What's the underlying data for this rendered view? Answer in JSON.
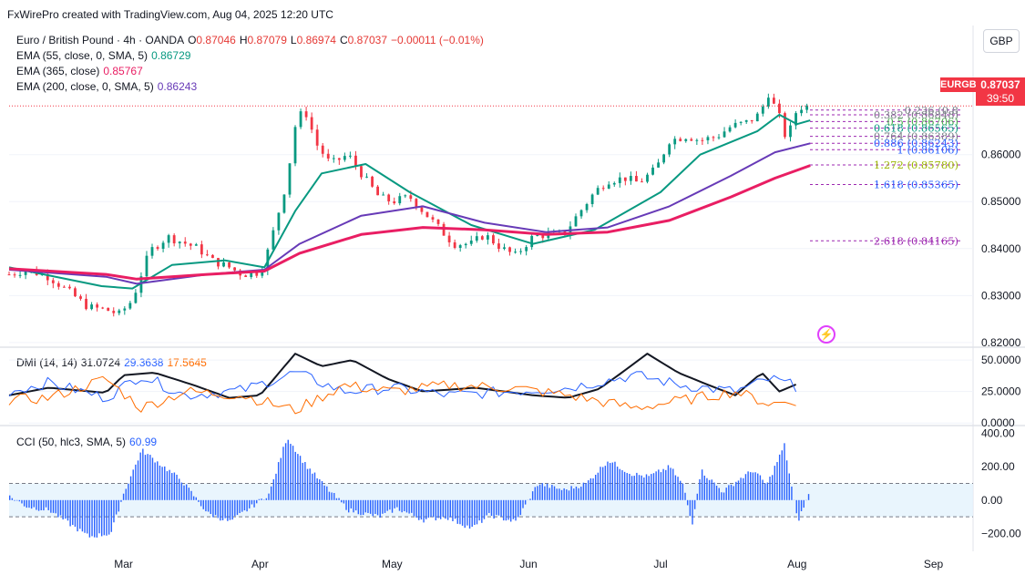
{
  "header": "FxWirePro created with TradingView.com, Aug 04, 2025 12:20 UTC",
  "currency_button": "GBP",
  "main_legend": {
    "symbol": "Euro / British Pound · 4h · OANDA",
    "o_label": "O",
    "o": "0.87046",
    "h_label": "H",
    "h": "0.87079",
    "l_label": "L",
    "l": "0.86974",
    "c_label": "C",
    "c": "0.87037",
    "change": "−0.00011 (−0.01%)",
    "ema55_label": "EMA (55, close, 0, SMA, 5)",
    "ema55": "0.86729",
    "ema365_label": "EMA (365, close)",
    "ema365": "0.85767",
    "ema200_label": "EMA (200, close, 0, SMA, 5)",
    "ema200": "0.86243"
  },
  "dmi_legend": {
    "label": "DMI (14, 14)",
    "adx": "31.0724",
    "plus_di": "29.3638",
    "minus_di": "17.5645"
  },
  "cci_legend": {
    "label": "CCI (50, hlc3, SMA, 5)",
    "value": "60.99"
  },
  "price_tag": {
    "symbol": "EURGBP",
    "price": "0.87037",
    "countdown": "39:50"
  },
  "colors": {
    "up": "#089981",
    "down": "#f23645",
    "ema55": "#089981",
    "ema200": "#673ab7",
    "ema365": "#e91e63",
    "adx": "#131722",
    "plus_di": "#2962ff",
    "minus_di": "#ff6d00",
    "cci": "#2962ff",
    "fib": "#9c27b0"
  },
  "chart_data": [
    {
      "type": "candlestick",
      "title": "Euro / British Pound · 4h · OANDA",
      "x_ticks": [
        "Mar",
        "Apr",
        "May",
        "Jun",
        "Jul",
        "Aug",
        "Sep"
      ],
      "y_ticks": [
        "0.82000",
        "0.83000",
        "0.84000",
        "0.85000",
        "0.86000"
      ],
      "ylim": [
        0.819,
        0.8875
      ],
      "close_path": [
        [
          "Feb 03",
          0.8345
        ],
        [
          "Feb 07",
          0.8355
        ],
        [
          "Feb 12",
          0.834
        ],
        [
          "Feb 17",
          0.8305
        ],
        [
          "Feb 21",
          0.8275
        ],
        [
          "Feb 25",
          0.827
        ],
        [
          "Feb 28",
          0.826
        ],
        [
          "Mar 03",
          0.829
        ],
        [
          "Mar 05",
          0.8345
        ],
        [
          "Mar 07",
          0.8395
        ],
        [
          "Mar 11",
          0.8425
        ],
        [
          "Mar 14",
          0.8415
        ],
        [
          "Mar 18",
          0.84
        ],
        [
          "Mar 21",
          0.8375
        ],
        [
          "Mar 25",
          0.836
        ],
        [
          "Mar 28",
          0.8345
        ],
        [
          "Apr 01",
          0.835
        ],
        [
          "Apr 03",
          0.84
        ],
        [
          "Apr 07",
          0.854
        ],
        [
          "Apr 09",
          0.866
        ],
        [
          "Apr 11",
          0.87
        ],
        [
          "Apr 14",
          0.862
        ],
        [
          "Apr 17",
          0.858
        ],
        [
          "Apr 21",
          0.86
        ],
        [
          "Apr 24",
          0.856
        ],
        [
          "Apr 28",
          0.851
        ],
        [
          "May 01",
          0.85
        ],
        [
          "May 05",
          0.851
        ],
        [
          "May 08",
          0.848
        ],
        [
          "May 12",
          0.844
        ],
        [
          "May 15",
          0.841
        ],
        [
          "May 19",
          0.841
        ],
        [
          "May 22",
          0.843
        ],
        [
          "May 26",
          0.84
        ],
        [
          "May 29",
          0.8385
        ],
        [
          "Jun 02",
          0.8425
        ],
        [
          "Jun 05",
          0.843
        ],
        [
          "Jun 09",
          0.843
        ],
        [
          "Jun 12",
          0.847
        ],
        [
          "Jun 16",
          0.852
        ],
        [
          "Jun 19",
          0.8545
        ],
        [
          "Jun 23",
          0.855
        ],
        [
          "Jun 26",
          0.854
        ],
        [
          "Jun 30",
          0.857
        ],
        [
          "Jul 03",
          0.863
        ],
        [
          "Jul 07",
          0.864
        ],
        [
          "Jul 10",
          0.863
        ],
        [
          "Jul 14",
          0.864
        ],
        [
          "Jul 17",
          0.866
        ],
        [
          "Jul 21",
          0.867
        ],
        [
          "Jul 24",
          0.869
        ],
        [
          "Jul 25",
          0.874
        ],
        [
          "Jul 28",
          0.868
        ],
        [
          "Jul 29",
          0.864
        ],
        [
          "Jul 31",
          0.866
        ],
        [
          "Aug 01",
          0.87
        ],
        [
          "Aug 04",
          0.8704
        ]
      ],
      "series": [
        {
          "name": "EMA (55, close, 0, SMA, 5)",
          "last": 0.86729,
          "points": [
            [
              "Feb 03",
              0.836
            ],
            [
              "Feb 24",
              0.832
            ],
            [
              "Mar 03",
              0.8315
            ],
            [
              "Mar 12",
              0.8365
            ],
            [
              "Mar 24",
              0.8375
            ],
            [
              "Apr 02",
              0.836
            ],
            [
              "Apr 09",
              0.848
            ],
            [
              "Apr 15",
              0.856
            ],
            [
              "Apr 25",
              0.858
            ],
            [
              "May 05",
              0.852
            ],
            [
              "May 19",
              0.845
            ],
            [
              "Jun 02",
              0.841
            ],
            [
              "Jun 16",
              0.844
            ],
            [
              "Jul 01",
              0.852
            ],
            [
              "Jul 10",
              0.86
            ],
            [
              "Jul 23",
              0.865
            ],
            [
              "Jul 28",
              0.8685
            ],
            [
              "Aug 01",
              0.8665
            ],
            [
              "Aug 04",
              0.8673
            ]
          ]
        },
        {
          "name": "EMA (200, close, 0, SMA, 5)",
          "last": 0.86243,
          "points": [
            [
              "Feb 03",
              0.8355
            ],
            [
              "Feb 25",
              0.834
            ],
            [
              "Mar 04",
              0.8325
            ],
            [
              "Mar 20",
              0.8345
            ],
            [
              "Apr 02",
              0.8355
            ],
            [
              "Apr 10",
              0.841
            ],
            [
              "Apr 24",
              0.847
            ],
            [
              "May 08",
              0.849
            ],
            [
              "May 22",
              0.8455
            ],
            [
              "Jun 05",
              0.8435
            ],
            [
              "Jun 19",
              0.8445
            ],
            [
              "Jul 03",
              0.849
            ],
            [
              "Jul 17",
              0.8555
            ],
            [
              "Jul 27",
              0.8605
            ],
            [
              "Aug 04",
              0.8624
            ]
          ]
        },
        {
          "name": "EMA (365, close)",
          "last": 0.85767,
          "points": [
            [
              "Feb 03",
              0.8357
            ],
            [
              "Feb 25",
              0.8345
            ],
            [
              "Mar 04",
              0.8335
            ],
            [
              "Mar 20",
              0.8345
            ],
            [
              "Apr 02",
              0.8352
            ],
            [
              "Apr 10",
              0.839
            ],
            [
              "Apr 24",
              0.843
            ],
            [
              "May 08",
              0.8445
            ],
            [
              "May 22",
              0.844
            ],
            [
              "Jun 05",
              0.843
            ],
            [
              "Jun 19",
              0.8435
            ],
            [
              "Jul 03",
              0.846
            ],
            [
              "Jul 17",
              0.851
            ],
            [
              "Jul 27",
              0.855
            ],
            [
              "Aug 04",
              0.8577
            ]
          ]
        }
      ],
      "fib_levels": [
        {
          "label": "0.236 (0.8",
          "value": 0.8695
        },
        {
          "label": "0.382 (0.86848)",
          "value": 0.86848
        },
        {
          "label": "0.5 (0.86706)",
          "value": 0.86706
        },
        {
          "label": "0.618 (0.86565)",
          "value": 0.86565
        },
        {
          "label": "0.764 (0.86389)",
          "value": 0.86389
        },
        {
          "label": "0.886 (0.86243)",
          "value": 0.86243
        },
        {
          "label": "1 (0.86106)",
          "value": 0.86106
        },
        {
          "label": "1.272 (0.85780)",
          "value": 0.8578
        },
        {
          "label": "1.618 (0.85365)",
          "value": 0.85365
        },
        {
          "label": "2.618 (0.84165)",
          "value": 0.84165
        }
      ],
      "last_price": 0.87037
    },
    {
      "type": "line",
      "title": "DMI (14, 14)",
      "y_ticks": [
        "50.0000",
        "25.0000",
        "0.0000"
      ],
      "ylim": [
        -2,
        58
      ],
      "series": [
        {
          "name": "ADX",
          "points": [
            [
              "Feb 03",
              22
            ],
            [
              "Feb 12",
              28
            ],
            [
              "Feb 25",
              24
            ],
            [
              "Mar 01",
              38
            ],
            [
              "Mar 08",
              40
            ],
            [
              "Mar 17",
              30
            ],
            [
              "Mar 25",
              20
            ],
            [
              "Apr 01",
              22
            ],
            [
              "Apr 09",
              55
            ],
            [
              "Apr 15",
              45
            ],
            [
              "Apr 22",
              50
            ],
            [
              "Apr 30",
              35
            ],
            [
              "May 08",
              25
            ],
            [
              "May 20",
              28
            ],
            [
              "Jun 02",
              22
            ],
            [
              "Jun 10",
              20
            ],
            [
              "Jun 17",
              27
            ],
            [
              "Jun 23",
              42
            ],
            [
              "Jun 28",
              55
            ],
            [
              "Jul 05",
              40
            ],
            [
              "Jul 12",
              30
            ],
            [
              "Jul 18",
              22
            ],
            [
              "Jul 24",
              40
            ],
            [
              "Jul 28",
              25
            ],
            [
              "Aug 01",
              31
            ]
          ]
        },
        {
          "name": "+DI",
          "points": [
            [
              "Feb 03",
              25
            ],
            [
              "Feb 12",
              32
            ],
            [
              "Feb 25",
              20
            ],
            [
              "Mar 05",
              38
            ],
            [
              "Mar 15",
              22
            ],
            [
              "Mar 28",
              26
            ],
            [
              "Apr 09",
              40
            ],
            [
              "Apr 20",
              25
            ],
            [
              "May 01",
              28
            ],
            [
              "May 14",
              22
            ],
            [
              "May 28",
              25
            ],
            [
              "Jun 10",
              28
            ],
            [
              "Jun 25",
              38
            ],
            [
              "Jul 06",
              30
            ],
            [
              "Jul 18",
              25
            ],
            [
              "Jul 26",
              35
            ],
            [
              "Aug 01",
              29
            ]
          ]
        },
        {
          "name": "-DI",
          "points": [
            [
              "Feb 03",
              18
            ],
            [
              "Feb 12",
              20
            ],
            [
              "Feb 25",
              35
            ],
            [
              "Mar 05",
              12
            ],
            [
              "Mar 15",
              25
            ],
            [
              "Mar 28",
              22
            ],
            [
              "Apr 09",
              10
            ],
            [
              "Apr 20",
              30
            ],
            [
              "May 01",
              25
            ],
            [
              "May 14",
              30
            ],
            [
              "May 28",
              28
            ],
            [
              "Jun 10",
              22
            ],
            [
              "Jun 25",
              12
            ],
            [
              "Jul 06",
              18
            ],
            [
              "Jul 18",
              25
            ],
            [
              "Jul 26",
              15
            ],
            [
              "Aug 01",
              18
            ]
          ]
        }
      ]
    },
    {
      "type": "histogram",
      "title": "CCI (50, hlc3, SMA, 5)",
      "y_ticks": [
        "400.00",
        "200.00",
        "0.00",
        "−200.00"
      ],
      "ylim": [
        -280,
        420
      ],
      "band": [
        -100,
        100
      ],
      "points": [
        [
          "Feb 03",
          20
        ],
        [
          "Feb 07",
          -40
        ],
        [
          "Feb 12",
          -60
        ],
        [
          "Feb 17",
          -150
        ],
        [
          "Feb 21",
          -220
        ],
        [
          "Feb 26",
          -200
        ],
        [
          "Mar 01",
          50
        ],
        [
          "Mar 05",
          300
        ],
        [
          "Mar 10",
          200
        ],
        [
          "Mar 14",
          120
        ],
        [
          "Mar 20",
          -80
        ],
        [
          "Mar 25",
          -130
        ],
        [
          "Mar 30",
          -40
        ],
        [
          "Apr 03",
          40
        ],
        [
          "Apr 07",
          380
        ],
        [
          "Apr 11",
          220
        ],
        [
          "Apr 15",
          100
        ],
        [
          "Apr 21",
          -60
        ],
        [
          "Apr 28",
          -100
        ],
        [
          "May 02",
          -50
        ],
        [
          "May 08",
          -120
        ],
        [
          "May 13",
          -100
        ],
        [
          "May 19",
          -170
        ],
        [
          "May 23",
          -90
        ],
        [
          "May 29",
          -130
        ],
        [
          "Jun 03",
          100
        ],
        [
          "Jun 09",
          60
        ],
        [
          "Jun 14",
          100
        ],
        [
          "Jun 19",
          240
        ],
        [
          "Jun 24",
          160
        ],
        [
          "Jun 28",
          140
        ],
        [
          "Jul 03",
          200
        ],
        [
          "Jul 06",
          90
        ],
        [
          "Jul 08",
          -150
        ],
        [
          "Jul 10",
          180
        ],
        [
          "Jul 15",
          50
        ],
        [
          "Jul 19",
          130
        ],
        [
          "Jul 22",
          180
        ],
        [
          "Jul 25",
          90
        ],
        [
          "Jul 29",
          330
        ],
        [
          "Aug 01",
          -130
        ],
        [
          "Aug 04",
          61
        ]
      ]
    }
  ]
}
